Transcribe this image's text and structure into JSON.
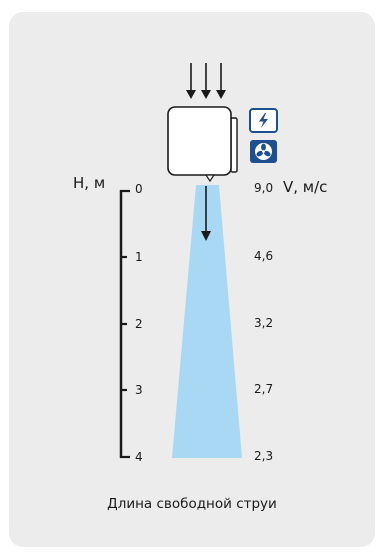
{
  "height_axis": {
    "label": "H, м",
    "ticks": [
      "0",
      "1",
      "2",
      "3",
      "4"
    ]
  },
  "velocity_axis": {
    "label": "V, м/с",
    "values": [
      "9,0",
      "4,6",
      "3,2",
      "2,7",
      "2,3"
    ]
  },
  "caption": "Длина свободной струи",
  "icons": {
    "power": "lightning-icon",
    "fan": "fan-icon"
  },
  "colors": {
    "card_background": "#ececec",
    "jet": "#a8d8f4",
    "icon_accent": "#1e4f8f",
    "lines": "#1a1a1a"
  }
}
